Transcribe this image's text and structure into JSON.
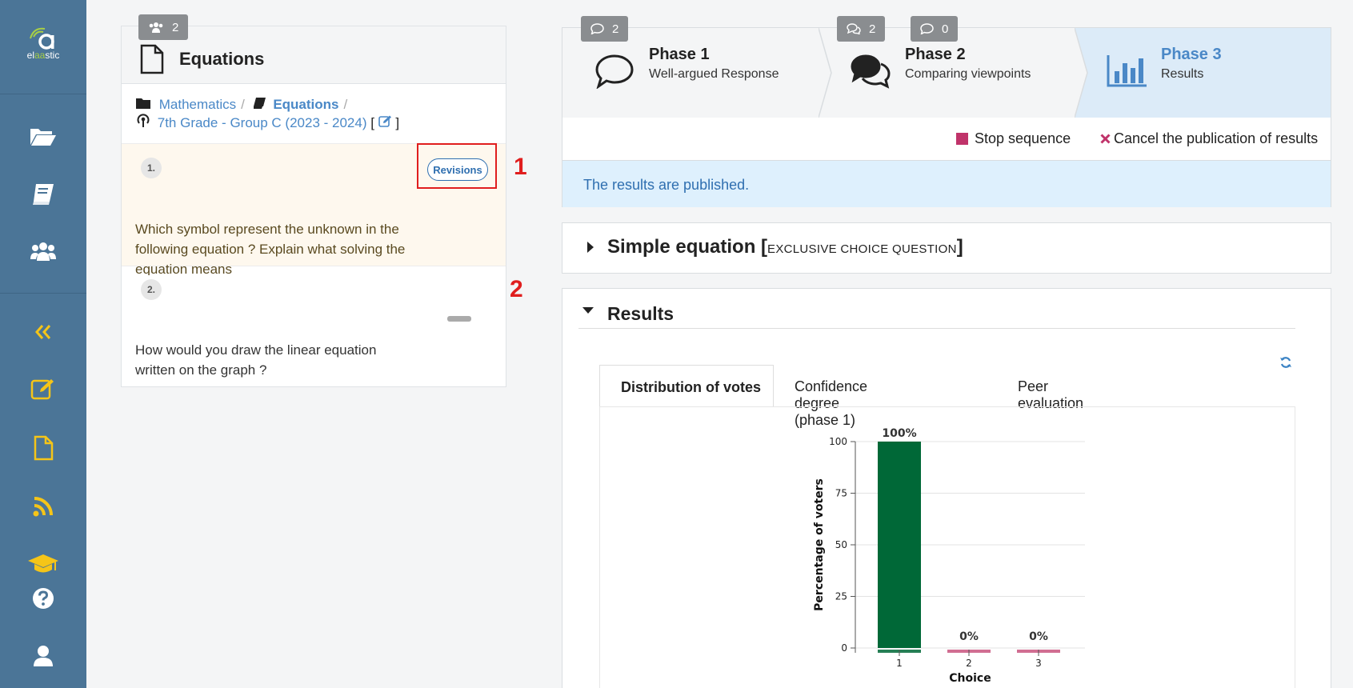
{
  "app": {
    "logo_prefix": "el",
    "logo_highlight": "aa",
    "logo_suffix": "stic"
  },
  "sidebar": {
    "items": [
      {
        "name": "folder-open-icon",
        "color": "#ffffff"
      },
      {
        "name": "book-icon",
        "color": "#ffffff"
      },
      {
        "name": "users-icon",
        "color": "#ffffff"
      },
      {
        "name": "collapse-icon",
        "color": "#f5c518"
      },
      {
        "name": "edit-icon",
        "color": "#f5c518"
      },
      {
        "name": "file-icon",
        "color": "#f5c518"
      },
      {
        "name": "rss-icon",
        "color": "#f5c518"
      },
      {
        "name": "graduation-cap-icon",
        "color": "#f5c518"
      },
      {
        "name": "help-icon",
        "color": "#ffffff"
      },
      {
        "name": "user-icon",
        "color": "#ffffff"
      }
    ]
  },
  "sequence": {
    "participants_count": "2",
    "title": "Equations",
    "breadcrumb": {
      "subject": "Mathematics",
      "sequence": "Equations",
      "course": "7th Grade - Group C (2023 - 2024)",
      "open_bracket": "[",
      "close_bracket": "]"
    },
    "statements": [
      {
        "number": "1.",
        "text": "Which symbol represent the unknown in the following equation ?  Explain what solving the equation means",
        "button": "Revisions",
        "annotation": "1"
      },
      {
        "number": "2.",
        "text": "How would you draw the linear equation written on the graph ?",
        "annotation": "2"
      }
    ]
  },
  "phases": [
    {
      "title": "Phase 1",
      "subtitle": "Well-argued Response",
      "badges": [
        "2"
      ]
    },
    {
      "title": "Phase 2",
      "subtitle": "Comparing viewpoints",
      "badges": [
        "2",
        "0"
      ]
    },
    {
      "title": "Phase 3",
      "subtitle": "Results",
      "badges": []
    }
  ],
  "actions": {
    "stop": "Stop sequence",
    "cancel": "Cancel the publication of results"
  },
  "status_message": "The results are published.",
  "question": {
    "title": "Simple equation",
    "type_open": "[",
    "type": "EXCLUSIVE CHOICE QUESTION",
    "type_close": "]"
  },
  "results": {
    "title": "Results",
    "tabs": [
      "Distribution of votes",
      "Confidence degree (phase 1)",
      "Peer evaluation"
    ]
  },
  "chart_data": {
    "type": "bar",
    "categories": [
      "1",
      "2",
      "3"
    ],
    "values": [
      100,
      0,
      0
    ],
    "data_labels": [
      "100%",
      "0%",
      "0%"
    ],
    "xlabel": "Choice",
    "ylabel": "Percentage of voters",
    "ylim": [
      0,
      100
    ],
    "yticks": [
      0,
      25,
      50,
      75,
      100
    ],
    "grid": true,
    "colors": {
      "correct": "#006837",
      "incorrect": "#c9557f"
    }
  }
}
